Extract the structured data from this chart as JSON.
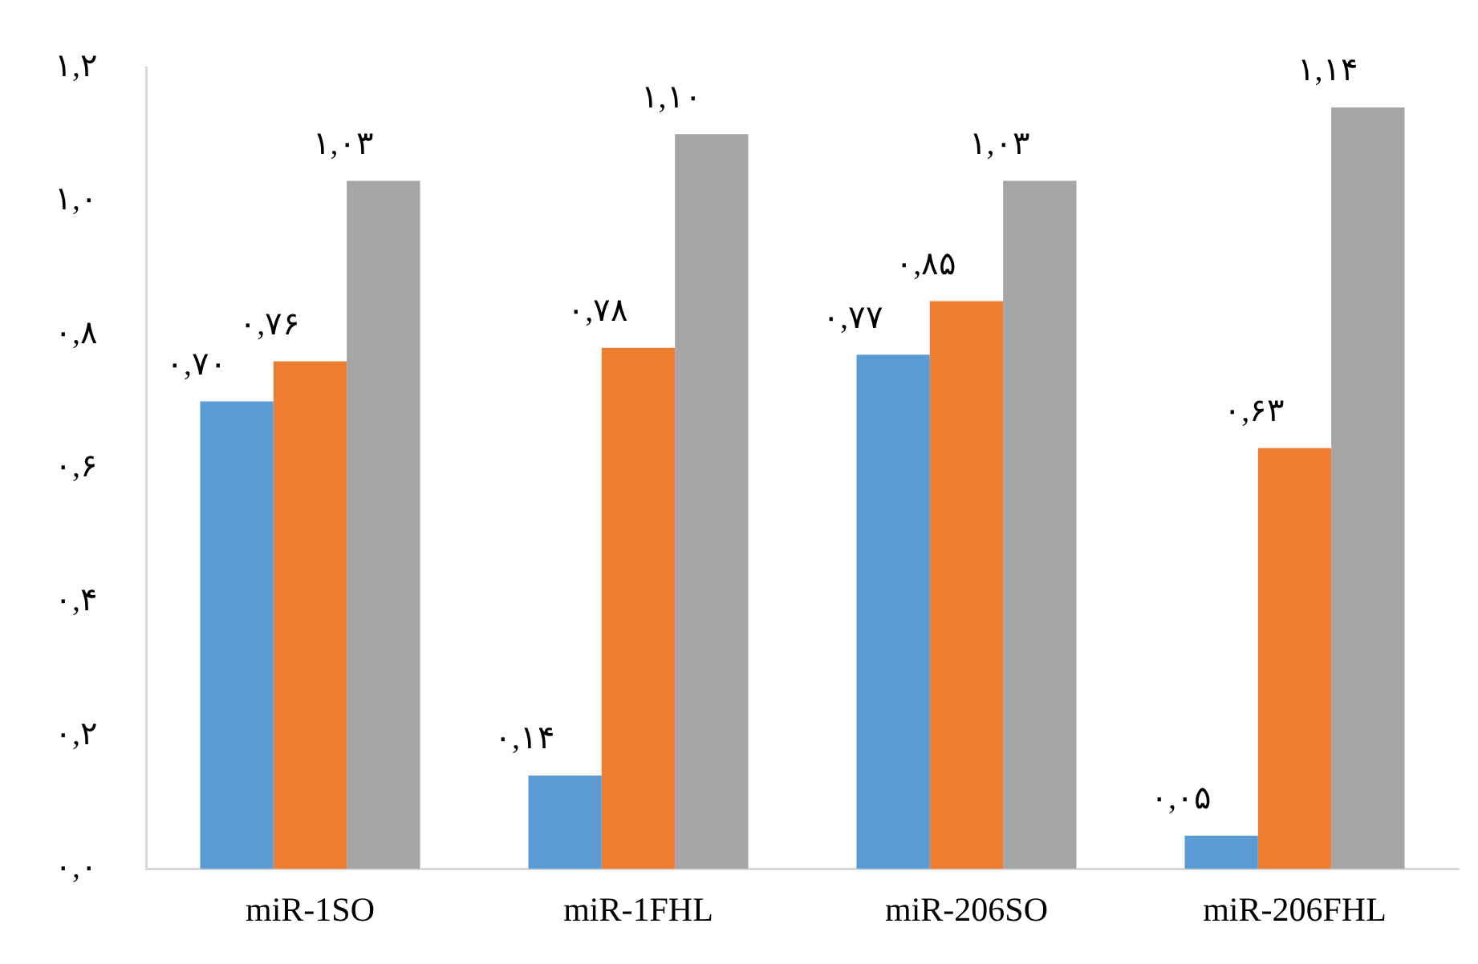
{
  "chart_data": {
    "type": "bar",
    "categories": [
      "miR-1SO",
      "miR-1FHL",
      "miR-206SO",
      "miR-206FHL"
    ],
    "series": [
      {
        "color": "#5b9bd5",
        "values": [
          0.7,
          0.14,
          0.77,
          0.05
        ],
        "value_labels": [
          "۰,۷۰",
          "۰,۱۴",
          "۰,۷۷",
          "۰,۰۵"
        ]
      },
      {
        "color": "#ed7d31",
        "values": [
          0.76,
          0.78,
          0.85,
          0.63
        ],
        "value_labels": [
          "۰,۷۶",
          "۰,۷۸",
          "۰,۸۵",
          "۰,۶۳"
        ]
      },
      {
        "color": "#a5a5a5",
        "values": [
          1.03,
          1.1,
          1.03,
          1.14
        ],
        "value_labels": [
          "۱,۰۳",
          "۱,۱۰",
          "۱,۰۳",
          "۱,۱۴"
        ]
      }
    ],
    "ylim": [
      0,
      1.2
    ],
    "yticks": [
      {
        "value": 0,
        "label": "۰,۰"
      },
      {
        "value": 0.2,
        "label": "۰,۲"
      },
      {
        "value": 0.4,
        "label": "۰,۴"
      },
      {
        "value": 0.6,
        "label": "۰,۶"
      },
      {
        "value": 0.8,
        "label": "۰,۸"
      },
      {
        "value": 1.0,
        "label": "۱,۰"
      },
      {
        "value": 1.2,
        "label": "۱,۲"
      }
    ],
    "grid": false,
    "legend": false
  }
}
